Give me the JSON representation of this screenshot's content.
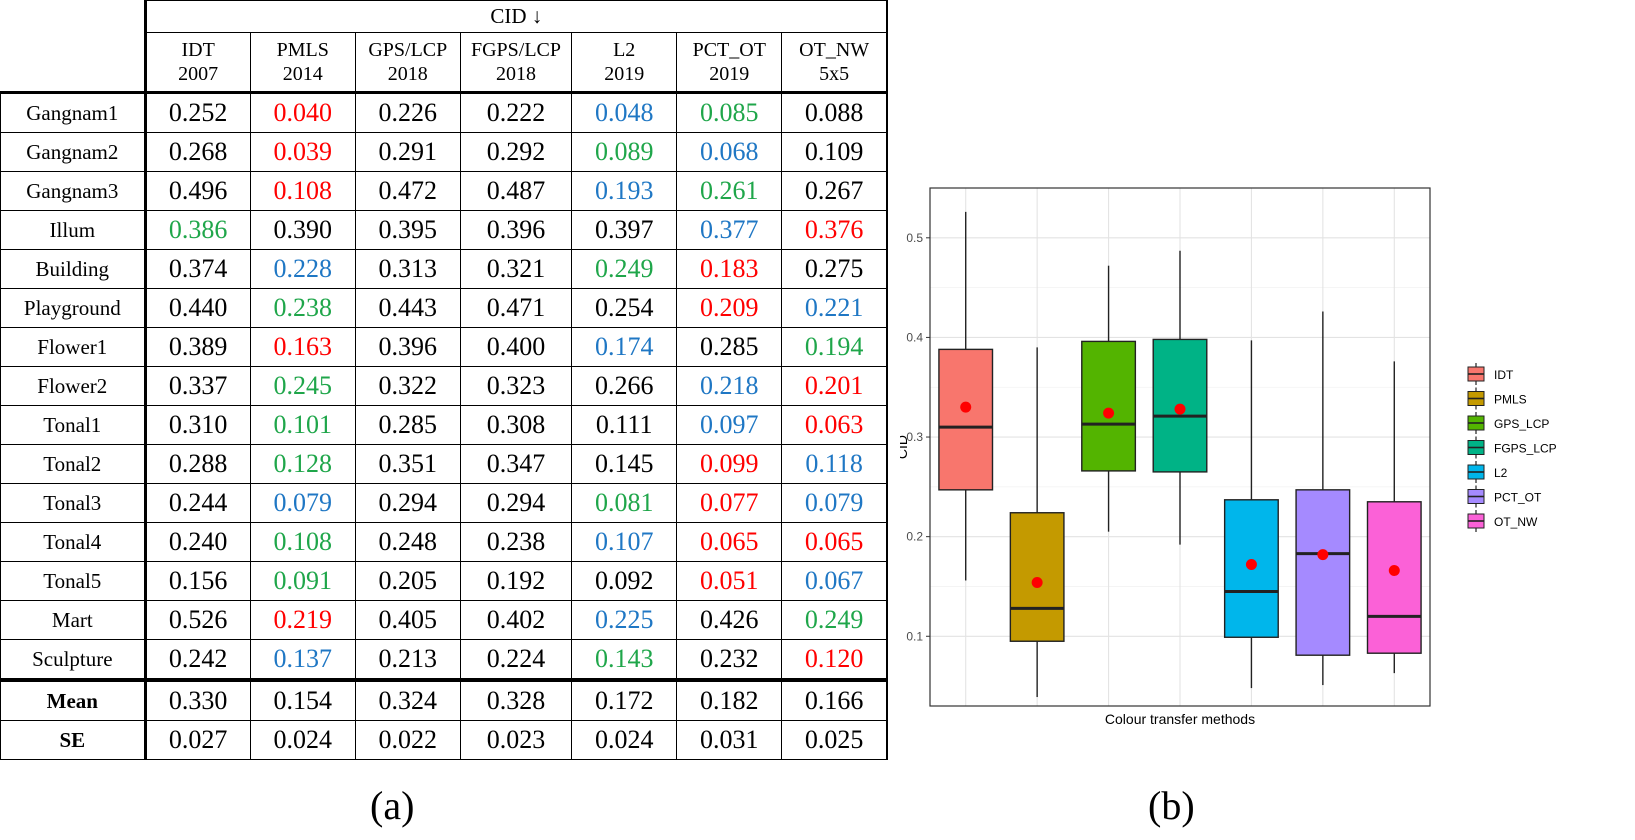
{
  "colors": {
    "red": "#ff0000",
    "blue": "#1f77c4",
    "green": "#1fa64a",
    "black": "#000000"
  },
  "table": {
    "cid_header": "CID ↓",
    "methods": [
      {
        "name": "IDT",
        "year": "2007"
      },
      {
        "name": "PMLS",
        "year": "2014"
      },
      {
        "name": "GPS/LCP",
        "year": "2018"
      },
      {
        "name": "FGPS/LCP",
        "year": "2018"
      },
      {
        "name": "L2",
        "year": "2019"
      },
      {
        "name": "PCT_OT",
        "year": "2019"
      },
      {
        "name": "OT_NW",
        "year": "5x5"
      }
    ],
    "rows": [
      {
        "label": "Gangnam1",
        "values": [
          "0.252",
          "0.040",
          "0.226",
          "0.222",
          "0.048",
          "0.085",
          "0.088"
        ],
        "colors": [
          "black",
          "red",
          "black",
          "black",
          "blue",
          "green",
          "black"
        ]
      },
      {
        "label": "Gangnam2",
        "values": [
          "0.268",
          "0.039",
          "0.291",
          "0.292",
          "0.089",
          "0.068",
          "0.109"
        ],
        "colors": [
          "black",
          "red",
          "black",
          "black",
          "green",
          "blue",
          "black"
        ]
      },
      {
        "label": "Gangnam3",
        "values": [
          "0.496",
          "0.108",
          "0.472",
          "0.487",
          "0.193",
          "0.261",
          "0.267"
        ],
        "colors": [
          "black",
          "red",
          "black",
          "black",
          "blue",
          "green",
          "black"
        ]
      },
      {
        "label": "Illum",
        "values": [
          "0.386",
          "0.390",
          "0.395",
          "0.396",
          "0.397",
          "0.377",
          "0.376"
        ],
        "colors": [
          "green",
          "black",
          "black",
          "black",
          "black",
          "blue",
          "red"
        ]
      },
      {
        "label": "Building",
        "values": [
          "0.374",
          "0.228",
          "0.313",
          "0.321",
          "0.249",
          "0.183",
          "0.275"
        ],
        "colors": [
          "black",
          "blue",
          "black",
          "black",
          "green",
          "red",
          "black"
        ]
      },
      {
        "label": "Playground",
        "values": [
          "0.440",
          "0.238",
          "0.443",
          "0.471",
          "0.254",
          "0.209",
          "0.221"
        ],
        "colors": [
          "black",
          "green",
          "black",
          "black",
          "black",
          "red",
          "blue"
        ]
      },
      {
        "label": "Flower1",
        "values": [
          "0.389",
          "0.163",
          "0.396",
          "0.400",
          "0.174",
          "0.285",
          "0.194"
        ],
        "colors": [
          "black",
          "red",
          "black",
          "black",
          "blue",
          "black",
          "green"
        ]
      },
      {
        "label": "Flower2",
        "values": [
          "0.337",
          "0.245",
          "0.322",
          "0.323",
          "0.266",
          "0.218",
          "0.201"
        ],
        "colors": [
          "black",
          "green",
          "black",
          "black",
          "black",
          "blue",
          "red"
        ]
      },
      {
        "label": "Tonal1",
        "values": [
          "0.310",
          "0.101",
          "0.285",
          "0.308",
          "0.111",
          "0.097",
          "0.063"
        ],
        "colors": [
          "black",
          "green",
          "black",
          "black",
          "black",
          "blue",
          "red"
        ]
      },
      {
        "label": "Tonal2",
        "values": [
          "0.288",
          "0.128",
          "0.351",
          "0.347",
          "0.145",
          "0.099",
          "0.118"
        ],
        "colors": [
          "black",
          "green",
          "black",
          "black",
          "black",
          "red",
          "blue"
        ]
      },
      {
        "label": "Tonal3",
        "values": [
          "0.244",
          "0.079",
          "0.294",
          "0.294",
          "0.081",
          "0.077",
          "0.079"
        ],
        "colors": [
          "black",
          "blue",
          "black",
          "black",
          "green",
          "red",
          "blue"
        ]
      },
      {
        "label": "Tonal4",
        "values": [
          "0.240",
          "0.108",
          "0.248",
          "0.238",
          "0.107",
          "0.065",
          "0.065"
        ],
        "colors": [
          "black",
          "green",
          "black",
          "black",
          "blue",
          "red",
          "red"
        ]
      },
      {
        "label": "Tonal5",
        "values": [
          "0.156",
          "0.091",
          "0.205",
          "0.192",
          "0.092",
          "0.051",
          "0.067"
        ],
        "colors": [
          "black",
          "green",
          "black",
          "black",
          "black",
          "red",
          "blue"
        ]
      },
      {
        "label": "Mart",
        "values": [
          "0.526",
          "0.219",
          "0.405",
          "0.402",
          "0.225",
          "0.426",
          "0.249"
        ],
        "colors": [
          "black",
          "red",
          "black",
          "black",
          "blue",
          "black",
          "green"
        ]
      },
      {
        "label": "Sculpture",
        "values": [
          "0.242",
          "0.137",
          "0.213",
          "0.224",
          "0.143",
          "0.232",
          "0.120"
        ],
        "colors": [
          "black",
          "blue",
          "black",
          "black",
          "green",
          "black",
          "red"
        ]
      }
    ],
    "summary": [
      {
        "label": "Mean",
        "values": [
          "0.330",
          "0.154",
          "0.324",
          "0.328",
          "0.172",
          "0.182",
          "0.166"
        ]
      },
      {
        "label": "SE",
        "values": [
          "0.027",
          "0.024",
          "0.022",
          "0.023",
          "0.024",
          "0.031",
          "0.025"
        ]
      }
    ]
  },
  "labels": {
    "a": "(a)",
    "b": "(b)"
  },
  "chart_data": {
    "type": "box",
    "xlabel": "Colour transfer methods",
    "ylabel": "CID",
    "ylim": [
      0.03,
      0.55
    ],
    "yticks": [
      0.1,
      0.2,
      0.3,
      0.4,
      0.5
    ],
    "ytick_labels": [
      "0.1",
      "0.2",
      "0.3",
      "0.4",
      "0.5"
    ],
    "legend_position": "right",
    "grid": true,
    "series": [
      {
        "name": "IDT",
        "color": "#f8766d",
        "min": 0.156,
        "q1": 0.247,
        "median": 0.31,
        "q3": 0.388,
        "max": 0.526,
        "mean": 0.33
      },
      {
        "name": "PMLS",
        "color": "#c49a00",
        "min": 0.039,
        "q1": 0.095,
        "median": 0.128,
        "q3": 0.224,
        "max": 0.39,
        "mean": 0.154
      },
      {
        "name": "GPS_LCP",
        "color": "#53b400",
        "min": 0.205,
        "q1": 0.266,
        "median": 0.313,
        "q3": 0.396,
        "max": 0.472,
        "mean": 0.324
      },
      {
        "name": "FGPS_LCP",
        "color": "#00b386",
        "min": 0.192,
        "q1": 0.265,
        "median": 0.321,
        "q3": 0.398,
        "max": 0.487,
        "mean": 0.328
      },
      {
        "name": "L2",
        "color": "#00b6eb",
        "min": 0.048,
        "q1": 0.099,
        "median": 0.145,
        "q3": 0.237,
        "max": 0.397,
        "mean": 0.172
      },
      {
        "name": "PCT_OT",
        "color": "#a58aff",
        "min": 0.051,
        "q1": 0.081,
        "median": 0.183,
        "q3": 0.247,
        "max": 0.426,
        "mean": 0.182
      },
      {
        "name": "OT_NW",
        "color": "#fb61d7",
        "min": 0.063,
        "q1": 0.083,
        "median": 0.12,
        "q3": 0.235,
        "max": 0.376,
        "mean": 0.166
      }
    ]
  }
}
